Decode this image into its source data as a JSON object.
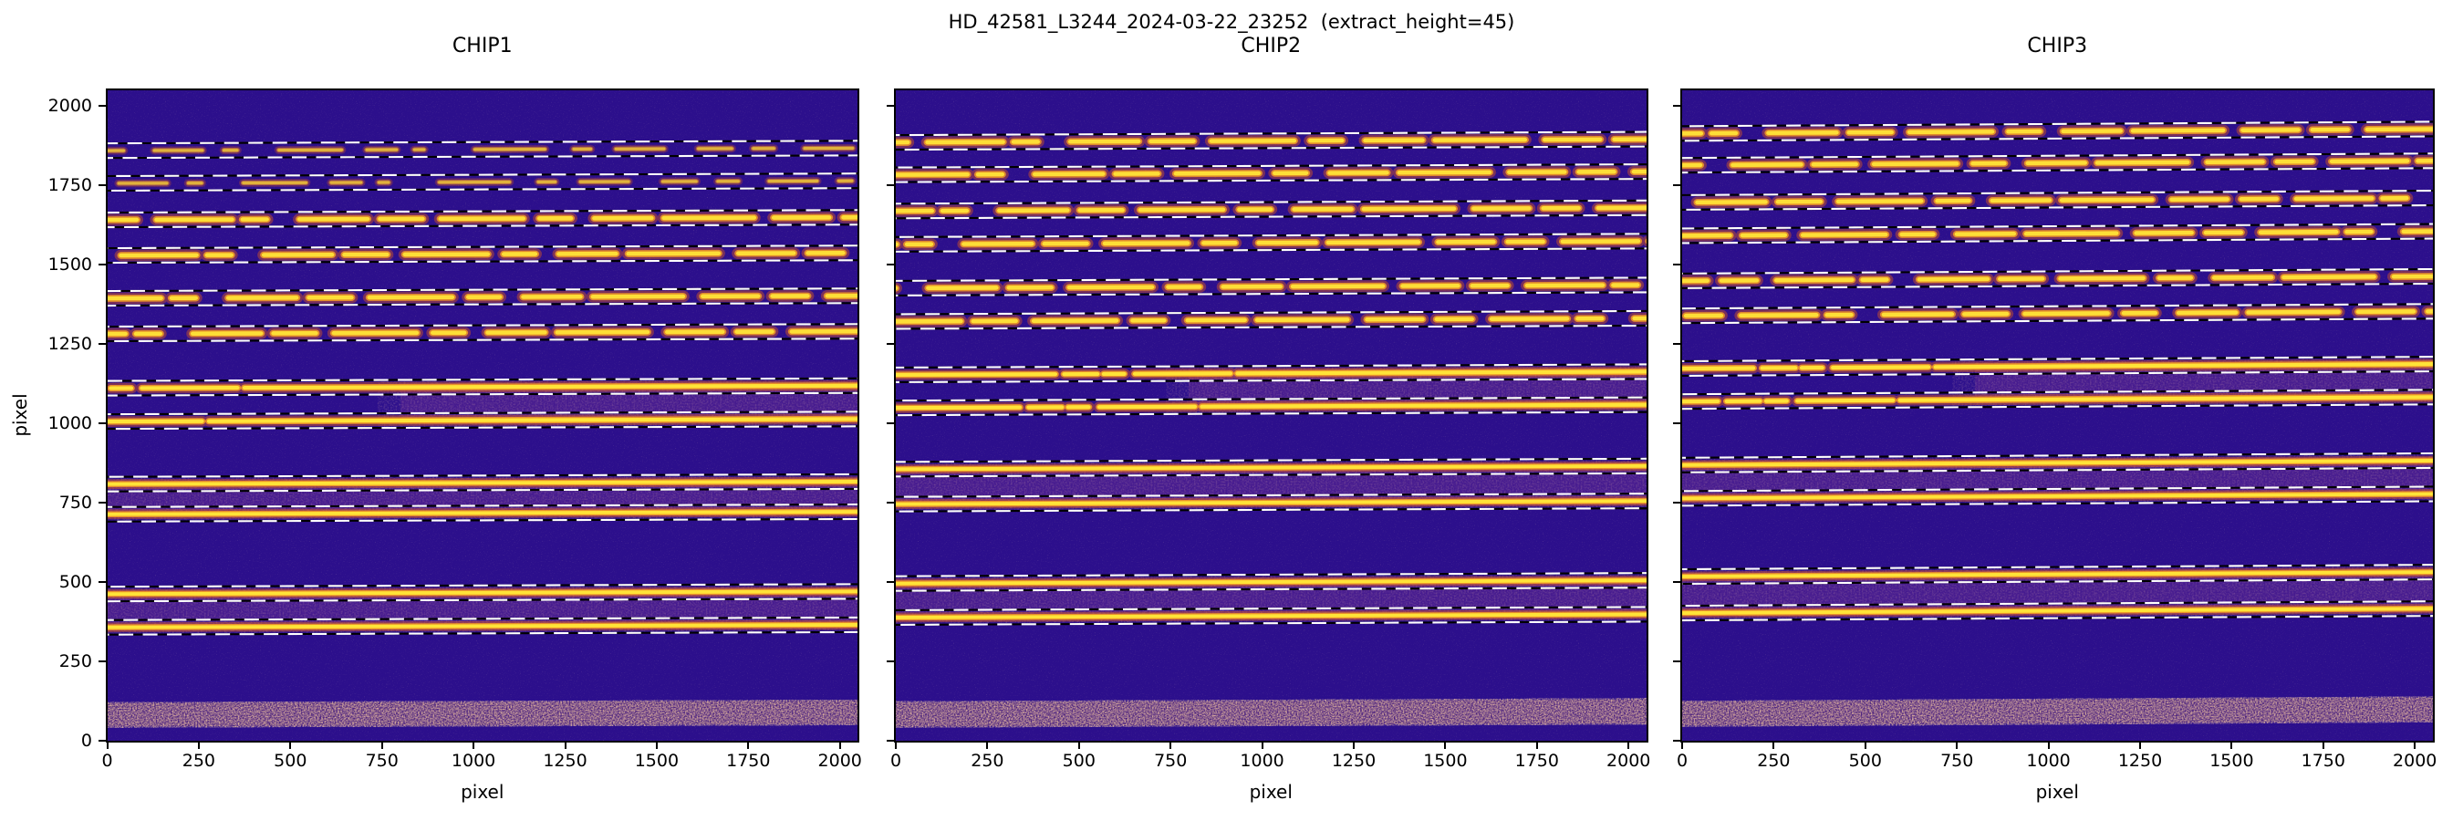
{
  "title": "HD_42581_L3244_2024-03-22_23252  (extract_height=45)",
  "extract_height": 45,
  "axes": {
    "xlabel": "pixel",
    "ylabel": "pixel",
    "xticks": [
      0,
      250,
      500,
      750,
      1000,
      1250,
      1500,
      1750,
      2000
    ],
    "yticks": [
      0,
      250,
      500,
      750,
      1000,
      1250,
      1500,
      1750,
      2000
    ],
    "xlim": [
      0,
      2048
    ],
    "ylim": [
      0,
      2048
    ]
  },
  "colors": {
    "figure_bg": "#ffffff",
    "background": "#2c0f8c",
    "inter_band_base": "#4f2090",
    "trace_core": "#ffe338",
    "trace_mid": "#ffa51e",
    "trace_outer": "#e35c1a",
    "dash_white": "#ffffff",
    "dash_black": "#000000",
    "scatter_base": "#7a3c63",
    "noise_orange": "#d98c54",
    "text": "#000000"
  },
  "chart_data": [
    {
      "type": "heatmap",
      "panel": "CHIP1",
      "tilt": 8,
      "order_traces": [
        {
          "y": 1858,
          "style": "faint"
        },
        {
          "y": 1755,
          "style": "faint"
        },
        {
          "y": 1640,
          "style": "patchy"
        },
        {
          "y": 1528,
          "style": "patchy"
        },
        {
          "y": 1393,
          "style": "patchy"
        },
        {
          "y": 1281,
          "style": "patchy"
        },
        {
          "y": 1110,
          "style": "gappy"
        },
        {
          "y": 1005,
          "style": "gappy"
        },
        {
          "y": 808,
          "style": "solid"
        },
        {
          "y": 713,
          "style": "solid"
        },
        {
          "y": 462,
          "style": "solid"
        },
        {
          "y": 357,
          "style": "solid"
        }
      ],
      "inter_order_bands": [
        {
          "y_top": 1110,
          "y_bottom": 1005,
          "extent": "right"
        },
        {
          "y_top": 808,
          "y_bottom": 713,
          "extent": "full"
        },
        {
          "y_top": 462,
          "y_bottom": 357,
          "extent": "full"
        }
      ],
      "scattered_light_band": {
        "y_bottom": 45,
        "y_top": 118
      }
    },
    {
      "type": "heatmap",
      "panel": "CHIP2",
      "tilt": 10,
      "order_traces": [
        {
          "y": 1884,
          "style": "patchy"
        },
        {
          "y": 1782,
          "style": "patchy"
        },
        {
          "y": 1668,
          "style": "patchy"
        },
        {
          "y": 1563,
          "style": "patchy"
        },
        {
          "y": 1425,
          "style": "patchy"
        },
        {
          "y": 1320,
          "style": "patchy"
        },
        {
          "y": 1152,
          "style": "gappy"
        },
        {
          "y": 1048,
          "style": "gappy"
        },
        {
          "y": 855,
          "style": "solid"
        },
        {
          "y": 745,
          "style": "solid"
        },
        {
          "y": 495,
          "style": "solid"
        },
        {
          "y": 388,
          "style": "solid"
        }
      ],
      "inter_order_bands": [
        {
          "y_top": 1152,
          "y_bottom": 1048,
          "extent": "right"
        },
        {
          "y_top": 855,
          "y_bottom": 745,
          "extent": "full"
        },
        {
          "y_top": 495,
          "y_bottom": 388,
          "extent": "full"
        }
      ],
      "scattered_light_band": {
        "y_bottom": 45,
        "y_top": 120
      }
    },
    {
      "type": "heatmap",
      "panel": "CHIP3",
      "tilt": 14,
      "order_traces": [
        {
          "y": 1912,
          "style": "patchy"
        },
        {
          "y": 1812,
          "style": "patchy"
        },
        {
          "y": 1695,
          "style": "patchy"
        },
        {
          "y": 1590,
          "style": "patchy"
        },
        {
          "y": 1448,
          "style": "patchy"
        },
        {
          "y": 1338,
          "style": "patchy"
        },
        {
          "y": 1172,
          "style": "gappy"
        },
        {
          "y": 1068,
          "style": "gappy"
        },
        {
          "y": 868,
          "style": "solid"
        },
        {
          "y": 763,
          "style": "solid"
        },
        {
          "y": 517,
          "style": "solid"
        },
        {
          "y": 402,
          "style": "solid"
        }
      ],
      "inter_order_bands": [
        {
          "y_top": 1172,
          "y_bottom": 1068,
          "extent": "right"
        },
        {
          "y_top": 868,
          "y_bottom": 763,
          "extent": "full"
        },
        {
          "y_top": 517,
          "y_bottom": 402,
          "extent": "full"
        }
      ],
      "scattered_light_band": {
        "y_bottom": 48,
        "y_top": 122
      }
    }
  ]
}
